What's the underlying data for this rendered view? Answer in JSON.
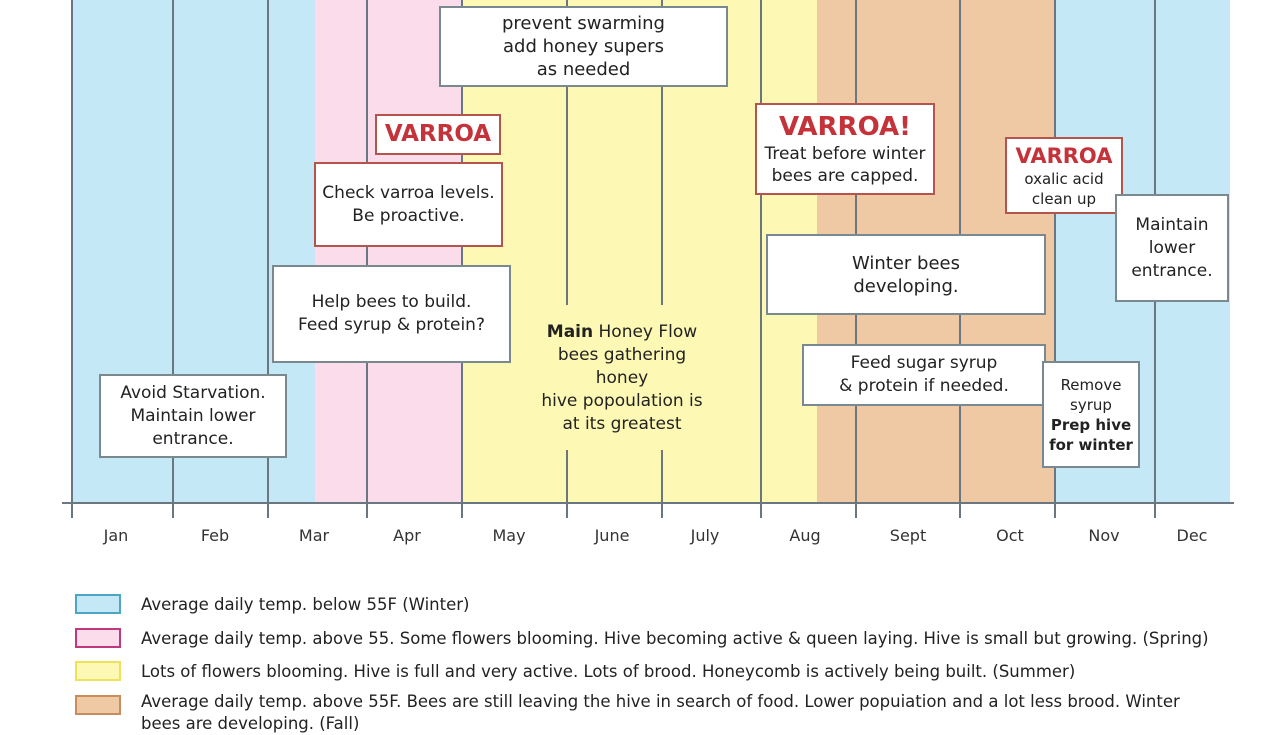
{
  "colors": {
    "winter": "#c5e8f7",
    "spring": "#fbdcea",
    "summer": "#fdf8b4",
    "fall": "#eec9a4",
    "varroa_red": "#c4323a"
  },
  "months": [
    "Jan",
    "Feb",
    "Mar",
    "Apr",
    "May",
    "June",
    "July",
    "Aug",
    "Sept",
    "Oct",
    "Nov",
    "Dec"
  ],
  "notes": {
    "swarming": [
      "prevent swarming",
      "add honey supers",
      "as needed"
    ],
    "varroa_spring_title": "VARROA",
    "varroa_spring": [
      "Check varroa levels.",
      "Be proactive."
    ],
    "build": [
      "Help bees to build.",
      "Feed syrup & protein?"
    ],
    "starvation": [
      "Avoid Starvation.",
      "Maintain lower",
      "entrance."
    ],
    "flow_bold": "Main",
    "flow_rest": " Honey Flow",
    "flow_lines": [
      "bees gathering",
      "honey",
      "hive popoulation is",
      "at its greatest"
    ],
    "varroa_summer_title": "VARROA!",
    "varroa_summer": [
      "Treat before winter",
      "bees are capped."
    ],
    "winter_bees": [
      "Winter bees",
      "developing."
    ],
    "feed_fall": [
      "Feed sugar syrup",
      "& protein if needed."
    ],
    "varroa_fall_title": "VARROA",
    "varroa_fall": [
      "oxalic acid",
      "clean up"
    ],
    "maintain": [
      "Maintain",
      "lower",
      "entrance."
    ],
    "remove": [
      "Remove",
      "syrup"
    ],
    "prep": [
      "Prep hive",
      "for winter"
    ]
  },
  "legend": [
    {
      "text": "Average daily temp. below 55F (Winter)",
      "fill": "#c5e8f7",
      "border": "#4fa6c4"
    },
    {
      "text": "Average daily temp. above 55. Some flowers blooming. Hive becoming active & queen laying. Hive is small but growing. (Spring)",
      "fill": "#fbdcea",
      "border": "#c0397f"
    },
    {
      "text": "Lots of flowers blooming. Hive is full and very active. Lots of brood. Honeycomb is actively being built. (Summer)",
      "fill": "#fdf8b4",
      "border": "#ede35b"
    },
    {
      "text": "Average daily temp. above 55F. Bees are still leaving the hive in search of food. Lower popuiation and a lot less brood. Winter",
      "text2": "bees are developing. (Fall)",
      "fill": "#eec9a4",
      "border": "#c98c5c"
    }
  ]
}
